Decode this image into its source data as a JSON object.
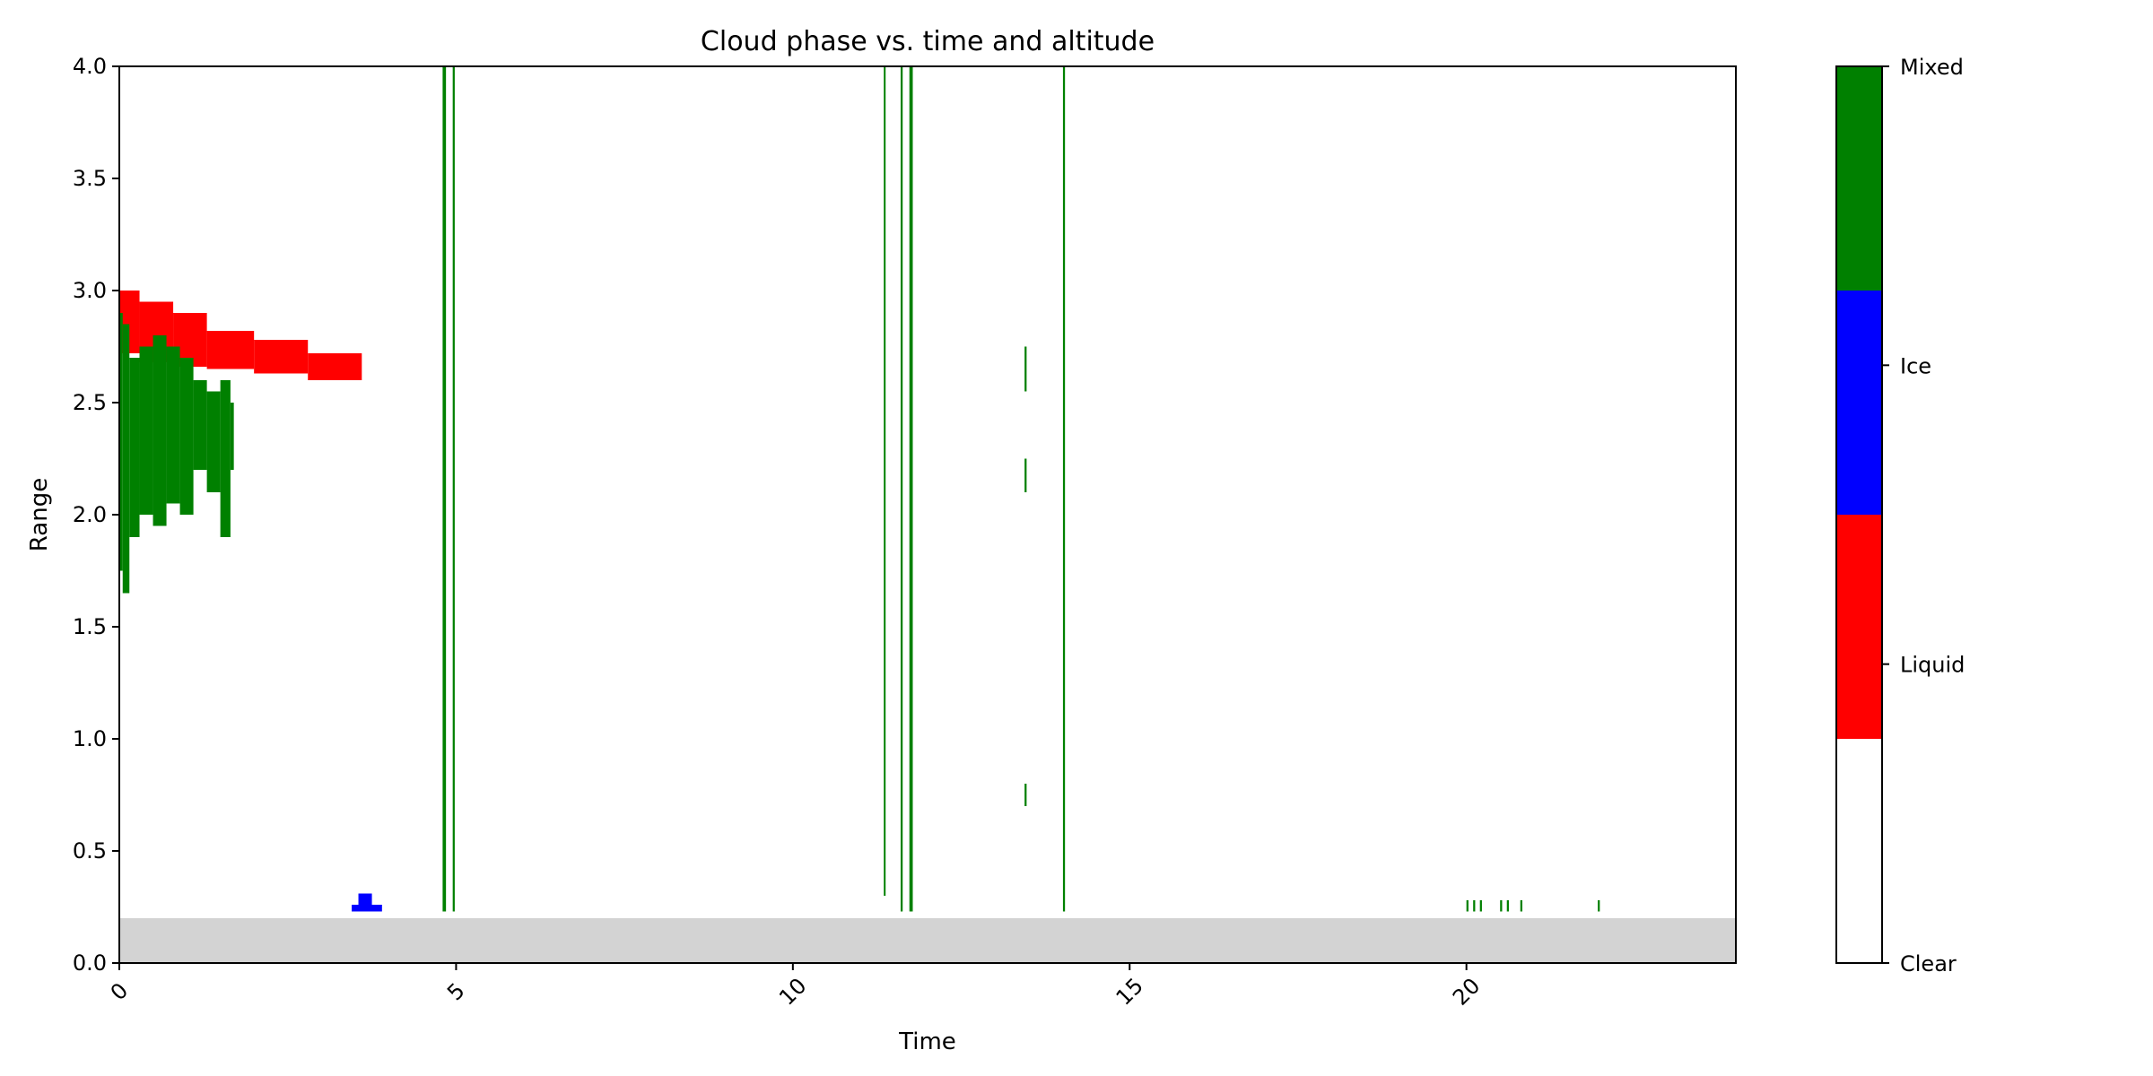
{
  "chart_data": {
    "type": "heatmap",
    "title": "Cloud phase vs. time and altitude",
    "xlabel": "Time",
    "ylabel": "Range",
    "xlim": [
      0,
      24
    ],
    "ylim": [
      0,
      4
    ],
    "x_ticks": [
      0,
      5,
      10,
      15,
      20
    ],
    "y_ticks": [
      0.0,
      0.5,
      1.0,
      1.5,
      2.0,
      2.5,
      3.0,
      3.5,
      4.0
    ],
    "x_tick_labels": [
      "0",
      "5",
      "10",
      "15",
      "20"
    ],
    "y_tick_labels": [
      "0.0",
      "0.5",
      "1.0",
      "1.5",
      "2.0",
      "2.5",
      "3.0",
      "3.5",
      "4.0"
    ],
    "grid": false,
    "colorbar": {
      "categories": [
        "Clear",
        "Liquid",
        "Ice",
        "Mixed"
      ],
      "colors": [
        "#ffffff",
        "#ff0000",
        "#0000ff",
        "#008000"
      ],
      "position": "right"
    },
    "ground_band": {
      "from": 0.0,
      "to": 0.2,
      "color": "#d3d3d3"
    },
    "regions": [
      {
        "phase": "Liquid",
        "x0": 0.0,
        "x1": 0.3,
        "y0": 2.72,
        "y1": 3.0
      },
      {
        "phase": "Liquid",
        "x0": 0.3,
        "x1": 0.8,
        "y0": 2.68,
        "y1": 2.95
      },
      {
        "phase": "Liquid",
        "x0": 0.8,
        "x1": 1.3,
        "y0": 2.66,
        "y1": 2.9
      },
      {
        "phase": "Liquid",
        "x0": 1.3,
        "x1": 2.0,
        "y0": 2.65,
        "y1": 2.82
      },
      {
        "phase": "Liquid",
        "x0": 2.0,
        "x1": 2.8,
        "y0": 2.63,
        "y1": 2.78
      },
      {
        "phase": "Liquid",
        "x0": 2.8,
        "x1": 3.6,
        "y0": 2.6,
        "y1": 2.72
      },
      {
        "phase": "Ice",
        "x0": 3.45,
        "x1": 3.9,
        "y0": 0.23,
        "y1": 0.26
      },
      {
        "phase": "Ice",
        "x0": 3.55,
        "x1": 3.75,
        "y0": 0.26,
        "y1": 0.31
      },
      {
        "phase": "Mixed",
        "x0": 4.8,
        "x1": 4.85,
        "y0": 0.23,
        "y1": 4.0
      },
      {
        "phase": "Mixed",
        "x0": 4.95,
        "x1": 4.98,
        "y0": 0.23,
        "y1": 4.0
      },
      {
        "phase": "Mixed",
        "x0": 11.73,
        "x1": 11.78,
        "y0": 0.23,
        "y1": 4.0
      },
      {
        "phase": "Mixed",
        "x0": 11.6,
        "x1": 11.63,
        "y0": 0.23,
        "y1": 4.0
      },
      {
        "phase": "Mixed",
        "x0": 11.35,
        "x1": 11.37,
        "y0": 0.3,
        "y1": 4.0
      },
      {
        "phase": "Mixed",
        "x0": 14.01,
        "x1": 14.04,
        "y0": 0.23,
        "y1": 4.0
      },
      {
        "phase": "Mixed",
        "x0": 13.44,
        "x1": 13.47,
        "y0": 2.55,
        "y1": 2.75
      },
      {
        "phase": "Mixed",
        "x0": 13.44,
        "x1": 13.47,
        "y0": 2.1,
        "y1": 2.25
      },
      {
        "phase": "Mixed",
        "x0": 13.44,
        "x1": 13.47,
        "y0": 0.7,
        "y1": 0.8
      },
      {
        "phase": "Mixed",
        "x0": 20.0,
        "x1": 20.03,
        "y0": 0.23,
        "y1": 0.28
      },
      {
        "phase": "Mixed",
        "x0": 20.1,
        "x1": 20.13,
        "y0": 0.23,
        "y1": 0.28
      },
      {
        "phase": "Mixed",
        "x0": 20.2,
        "x1": 20.23,
        "y0": 0.23,
        "y1": 0.28
      },
      {
        "phase": "Mixed",
        "x0": 20.5,
        "x1": 20.53,
        "y0": 0.23,
        "y1": 0.28
      },
      {
        "phase": "Mixed",
        "x0": 20.6,
        "x1": 20.63,
        "y0": 0.23,
        "y1": 0.28
      },
      {
        "phase": "Mixed",
        "x0": 20.8,
        "x1": 20.83,
        "y0": 0.23,
        "y1": 0.28
      },
      {
        "phase": "Mixed",
        "x0": 21.95,
        "x1": 21.98,
        "y0": 0.23,
        "y1": 0.28
      },
      {
        "phase": "Mixed",
        "x0": 0.0,
        "x1": 0.05,
        "y0": 1.75,
        "y1": 2.9
      },
      {
        "phase": "Mixed",
        "x0": 0.05,
        "x1": 0.15,
        "y0": 1.65,
        "y1": 2.85
      },
      {
        "phase": "Mixed",
        "x0": 0.15,
        "x1": 0.3,
        "y0": 1.9,
        "y1": 2.7
      },
      {
        "phase": "Mixed",
        "x0": 0.3,
        "x1": 0.5,
        "y0": 2.0,
        "y1": 2.75
      },
      {
        "phase": "Mixed",
        "x0": 0.5,
        "x1": 0.7,
        "y0": 1.95,
        "y1": 2.8
      },
      {
        "phase": "Mixed",
        "x0": 0.7,
        "x1": 0.9,
        "y0": 2.05,
        "y1": 2.75
      },
      {
        "phase": "Mixed",
        "x0": 0.9,
        "x1": 1.1,
        "y0": 2.0,
        "y1": 2.7
      },
      {
        "phase": "Mixed",
        "x0": 1.1,
        "x1": 1.3,
        "y0": 2.2,
        "y1": 2.6
      },
      {
        "phase": "Mixed",
        "x0": 1.3,
        "x1": 1.5,
        "y0": 2.1,
        "y1": 2.55
      },
      {
        "phase": "Mixed",
        "x0": 1.5,
        "x1": 1.65,
        "y0": 1.9,
        "y1": 2.6
      },
      {
        "phase": "Mixed",
        "x0": 1.65,
        "x1": 1.7,
        "y0": 2.2,
        "y1": 2.5
      }
    ]
  }
}
